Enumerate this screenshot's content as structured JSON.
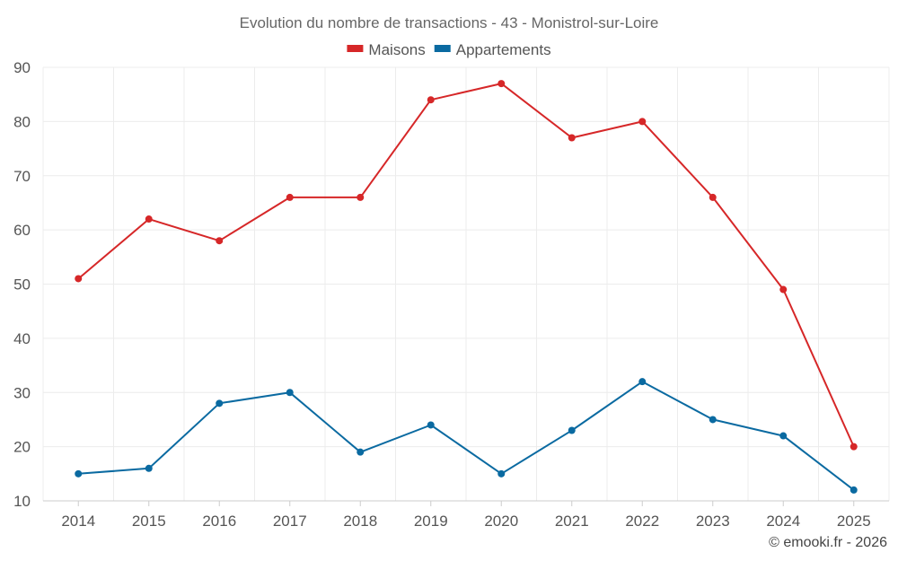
{
  "chart_data": {
    "type": "line",
    "title": "Evolution du nombre de transactions - 43 - Monistrol-sur-Loire",
    "xlabel": "",
    "ylabel": "",
    "categories": [
      "2014",
      "2015",
      "2016",
      "2017",
      "2018",
      "2019",
      "2020",
      "2021",
      "2022",
      "2023",
      "2024",
      "2025"
    ],
    "ylim": [
      10,
      90
    ],
    "yticks": [
      10,
      20,
      30,
      40,
      50,
      60,
      70,
      80,
      90
    ],
    "grid": true,
    "legend_position": "top-center",
    "series": [
      {
        "name": "Maisons",
        "color": "#d62728",
        "values": [
          51,
          62,
          58,
          66,
          66,
          84,
          87,
          77,
          80,
          66,
          49,
          20
        ]
      },
      {
        "name": "Appartements",
        "color": "#0a6aa1",
        "values": [
          15,
          16,
          28,
          30,
          19,
          24,
          15,
          23,
          32,
          25,
          22,
          12
        ]
      }
    ]
  },
  "credit": "© emooki.fr - 2026"
}
